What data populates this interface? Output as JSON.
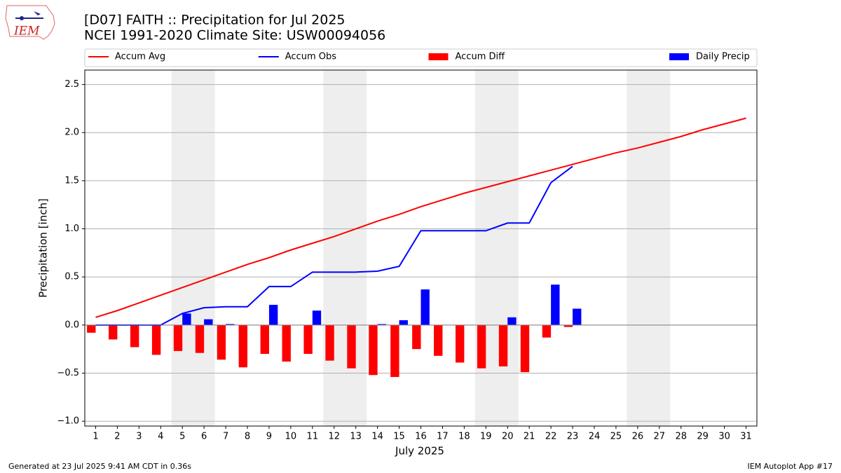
{
  "logo_text": "IEM",
  "footer_left": "Generated at 23 Jul 2025 9:41 AM CDT in 0.36s",
  "footer_right": "IEM Autoplot App #17",
  "chart_data": {
    "type": "bar",
    "title": "[D07] FAITH :: Precipitation for Jul 2025",
    "subtitle": "NCEI 1991-2020 Climate Site: USW00094056",
    "x_label": "July 2025",
    "y_label": "Precipitation [inch]",
    "x": [
      1,
      2,
      3,
      4,
      5,
      6,
      7,
      8,
      9,
      10,
      11,
      12,
      13,
      14,
      15,
      16,
      17,
      18,
      19,
      20,
      21,
      22,
      23,
      24,
      25,
      26,
      27,
      28,
      29,
      30,
      31
    ],
    "xlim": [
      0.5,
      31.5
    ],
    "xticks": [
      1,
      2,
      3,
      4,
      5,
      6,
      7,
      8,
      9,
      10,
      11,
      12,
      13,
      14,
      15,
      16,
      17,
      18,
      19,
      20,
      21,
      22,
      23,
      24,
      25,
      26,
      27,
      28,
      29,
      30,
      31
    ],
    "ylim": [
      -1.05,
      2.65
    ],
    "yticks": [
      {
        "value": -1,
        "label": "−1.0"
      },
      {
        "value": -0.5,
        "label": "−0.5"
      },
      {
        "value": 0,
        "label": "0.0"
      },
      0.5,
      {
        "value": 1,
        "label": "1.0"
      },
      1.5,
      {
        "value": 2,
        "label": "2.0"
      },
      2.5
    ],
    "grid": true,
    "shaded_ranges": [
      [
        4.5,
        6.5
      ],
      [
        11.5,
        13.5
      ],
      [
        18.5,
        20.5
      ],
      [
        25.5,
        27.5
      ]
    ],
    "series": [
      {
        "name": "Accum Avg",
        "type": "line",
        "color": "#ff0000",
        "values": [
          0.08,
          0.15,
          0.23,
          0.31,
          0.39,
          0.47,
          0.55,
          0.63,
          0.7,
          0.78,
          0.85,
          0.92,
          1.0,
          1.08,
          1.15,
          1.23,
          1.3,
          1.37,
          1.43,
          1.49,
          1.55,
          1.61,
          1.67,
          1.73,
          1.79,
          1.84,
          1.9,
          1.96,
          2.03,
          2.09,
          2.15
        ]
      },
      {
        "name": "Accum Obs",
        "type": "line",
        "color": "#0000ff",
        "values": [
          0,
          0,
          0,
          0,
          0.12,
          0.18,
          0.19,
          0.19,
          0.4,
          0.4,
          0.55,
          0.55,
          0.55,
          0.56,
          0.61,
          0.98,
          0.98,
          0.98,
          0.98,
          1.06,
          1.06,
          1.48,
          1.65,
          null,
          null,
          null,
          null,
          null,
          null,
          null,
          null
        ]
      },
      {
        "name": "Accum Diff",
        "type": "bar",
        "color": "#ff0000",
        "offset": -0.2,
        "values": [
          -0.08,
          -0.15,
          -0.23,
          -0.31,
          -0.27,
          -0.29,
          -0.36,
          -0.44,
          -0.3,
          -0.38,
          -0.3,
          -0.37,
          -0.45,
          -0.52,
          -0.54,
          -0.25,
          -0.32,
          -0.39,
          -0.45,
          -0.43,
          -0.49,
          -0.13,
          -0.02,
          null,
          null,
          null,
          null,
          null,
          null,
          null,
          null
        ]
      },
      {
        "name": "Daily Precip",
        "type": "bar",
        "color": "#0000ff",
        "offset": 0.2,
        "values": [
          0,
          0,
          0,
          0,
          0.12,
          0.06,
          0.01,
          0,
          0.21,
          0,
          0.15,
          0,
          0,
          0.01,
          0.05,
          0.37,
          0,
          0,
          0,
          0.08,
          0,
          0.42,
          0.17,
          null,
          null,
          null,
          null,
          null,
          null,
          null,
          null
        ]
      }
    ]
  }
}
